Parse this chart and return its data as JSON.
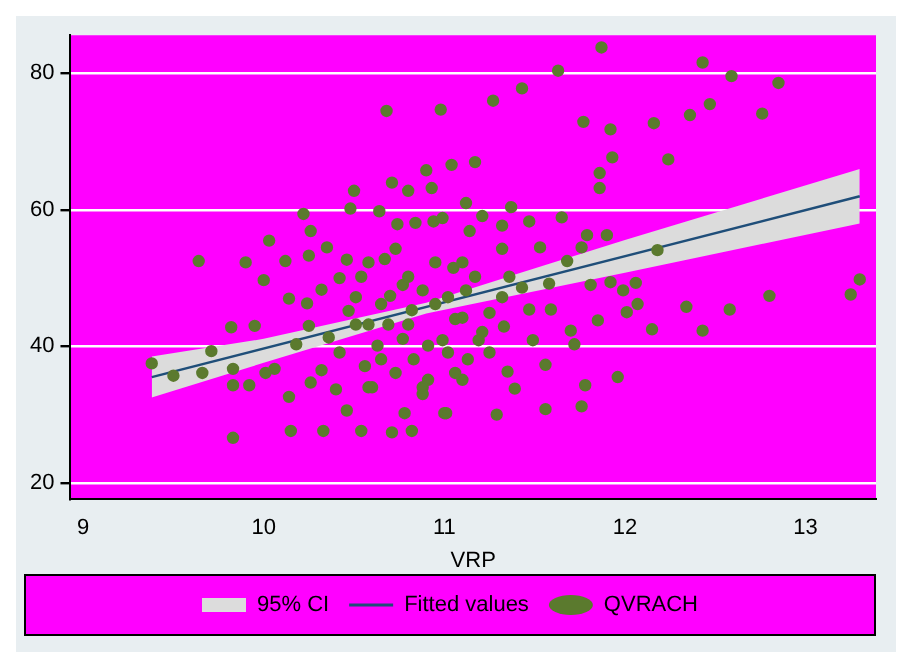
{
  "chart_data": {
    "type": "scatter",
    "xlabel": "VRP",
    "xlim": [
      8.93,
      13.39
    ],
    "ylim": [
      17.6,
      85.6
    ],
    "xticks": [
      9,
      10,
      11,
      12,
      13
    ],
    "yticks": [
      20,
      40,
      60,
      80
    ],
    "grid": "y",
    "legend": "bottom",
    "marker": "circle",
    "series": [
      {
        "name": "95% CI",
        "type": "area",
        "color": "#dcdcdc",
        "x": [
          9.38,
          10,
          10.9,
          12,
          13.3
        ],
        "marker": "none",
        "values": [
          null,
          null,
          null,
          null,
          null
        ],
        "lower": [
          32.5,
          37.6,
          44.8,
          50.8,
          58
        ],
        "upper": [
          38.5,
          41.1,
          46.4,
          55.6,
          66
        ]
      },
      {
        "name": "Fitted values",
        "type": "line",
        "color": "#1f4e79",
        "marker": "none",
        "x": [
          9.38,
          13.3
        ],
        "values": [
          35.5,
          62
        ]
      },
      {
        "name": "QVRACH",
        "color": "#5b7a2e",
        "x": [
          9.38,
          9.5,
          9.64,
          9.66,
          9.71,
          9.82,
          9.83,
          9.83,
          9.83,
          9.9,
          9.92,
          9.95,
          10.0,
          10.01,
          10.03,
          10.06,
          10.12,
          10.14,
          10.14,
          10.15,
          10.18,
          10.22,
          10.25,
          10.26,
          10.24,
          10.25,
          10.26,
          10.33,
          10.32,
          10.35,
          10.32,
          10.36,
          10.42,
          10.4,
          10.46,
          10.46,
          10.5,
          10.48,
          10.51,
          10.54,
          10.54,
          10.56,
          10.6,
          10.63,
          10.64,
          10.67,
          10.68,
          10.7,
          10.71,
          10.71,
          10.73,
          10.74,
          10.77,
          10.78,
          10.8,
          10.82,
          10.82,
          10.83,
          10.84,
          10.88,
          10.9,
          10.93,
          10.91,
          10.94,
          10.95,
          10.98,
          10.99,
          11.0,
          11.01,
          11.02,
          11.04,
          11.05,
          11.06,
          11.1,
          11.12,
          11.12,
          11.14,
          11.17,
          11.19,
          11.21,
          11.25,
          11.27,
          11.29,
          11.32,
          11.33,
          11.35,
          11.37,
          11.39,
          11.43,
          11.43,
          11.47,
          11.49,
          11.53,
          11.56,
          11.56,
          11.58,
          11.59,
          11.63,
          11.65,
          11.68,
          11.7,
          11.72,
          11.76,
          11.76,
          11.77,
          11.78,
          11.79,
          11.81,
          11.85,
          11.86,
          11.86,
          11.87,
          11.9,
          11.92,
          11.92,
          11.93,
          11.96,
          11.99,
          12.01,
          12.06,
          12.07,
          12.15,
          12.16,
          12.18,
          12.24,
          12.34,
          12.36,
          12.43,
          12.43,
          12.47,
          12.58,
          12.59,
          12.76,
          12.8,
          12.85,
          13.25,
          13.3,
          10.51,
          10.58,
          10.65,
          10.8,
          10.95,
          11.1,
          11.21,
          10.88,
          10.77,
          11.06,
          10.58,
          11.32,
          11.25,
          10.42,
          10.91,
          11.13,
          10.69,
          10.99,
          10.8,
          11.1,
          10.58,
          10.88,
          11.36,
          10.73,
          11.02,
          10.47,
          10.65,
          11.17,
          11.32,
          11.47
        ],
        "values": [
          37.5,
          35.7,
          52.5,
          36.1,
          39.3,
          42.8,
          26.6,
          36.7,
          34.3,
          52.3,
          34.3,
          43.0,
          49.7,
          36.1,
          55.5,
          36.7,
          52.5,
          47.0,
          32.6,
          27.6,
          40.3,
          59.4,
          53.3,
          56.9,
          46.3,
          43.0,
          34.7,
          27.6,
          48.3,
          54.5,
          36.5,
          41.3,
          50.0,
          33.7,
          30.6,
          52.7,
          62.8,
          60.2,
          43.2,
          27.6,
          50.2,
          37.1,
          34.0,
          40.1,
          59.8,
          52.8,
          74.5,
          47.4,
          27.4,
          64.0,
          36.1,
          57.9,
          49.0,
          30.2,
          62.8,
          27.6,
          45.3,
          38.1,
          58.1,
          33.0,
          65.8,
          63.2,
          40.1,
          58.3,
          46.2,
          74.7,
          58.8,
          30.2,
          30.2,
          39.1,
          66.6,
          51.5,
          44.0,
          35.1,
          61.0,
          48.2,
          56.9,
          67.0,
          40.9,
          59.1,
          44.9,
          76.0,
          30.0,
          57.7,
          42.9,
          36.3,
          60.4,
          33.8,
          77.8,
          48.6,
          58.3,
          40.9,
          54.5,
          37.3,
          30.8,
          49.2,
          45.4,
          80.4,
          58.9,
          52.5,
          42.3,
          40.3,
          54.5,
          31.2,
          72.9,
          34.3,
          56.3,
          49.0,
          43.8,
          65.4,
          63.2,
          83.8,
          56.3,
          49.4,
          71.8,
          67.7,
          35.5,
          48.2,
          45.0,
          49.3,
          46.2,
          42.5,
          72.7,
          54.1,
          67.4,
          45.8,
          73.9,
          42.3,
          81.6,
          75.5,
          45.4,
          79.6,
          74.1,
          47.4,
          78.6,
          47.6,
          49.8,
          47.2,
          43.2,
          38.1,
          43.2,
          52.3,
          44.2,
          42.1,
          48.2,
          41.1,
          36.1,
          52.3,
          47.2,
          39.1,
          39.1,
          35.1,
          38.1,
          43.2,
          40.9,
          50.2,
          52.3,
          34.0,
          34.0,
          50.2,
          54.3,
          47.2,
          45.2,
          46.2,
          50.2,
          54.3,
          45.4
        ]
      }
    ]
  }
}
